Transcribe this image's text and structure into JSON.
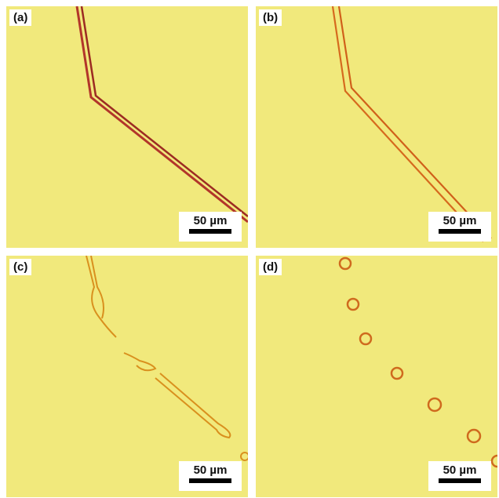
{
  "panels": [
    {
      "label": "(a)",
      "scale_label": "50 µm"
    },
    {
      "label": "(b)",
      "scale_label": "50 µm"
    },
    {
      "label": "(c)",
      "scale_label": "50 µm"
    },
    {
      "label": "(d)",
      "scale_label": "50 µm"
    }
  ]
}
